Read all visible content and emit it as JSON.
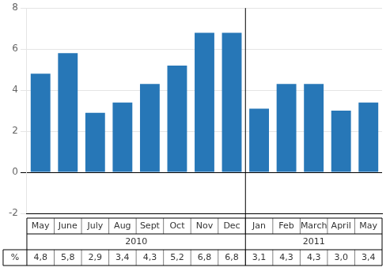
{
  "chart_data": {
    "type": "bar",
    "categories": [
      "May",
      "June",
      "July",
      "Aug",
      "Sept",
      "Oct",
      "Nov",
      "Dec",
      "Jan",
      "Feb",
      "March",
      "April",
      "May"
    ],
    "values": [
      4.8,
      5.8,
      2.9,
      3.4,
      4.3,
      5.2,
      6.8,
      6.8,
      3.1,
      4.3,
      4.3,
      3.0,
      3.4
    ],
    "value_labels": [
      "4,8",
      "5,8",
      "2,9",
      "3,4",
      "4,3",
      "5,2",
      "6,8",
      "6,8",
      "3,1",
      "4,3",
      "4,3",
      "3,0",
      "3,4"
    ],
    "data_labels": true,
    "color": "#2777b7",
    "ylim": [
      -2,
      8
    ],
    "yticks": [
      -2,
      0,
      2,
      4,
      6,
      8
    ],
    "grid": true,
    "annotations": [
      {
        "text": "%"
      },
      {
        "text": "2010",
        "start": 0,
        "end": 7
      },
      {
        "text": "2011",
        "start": 8,
        "end": 12
      }
    ]
  }
}
